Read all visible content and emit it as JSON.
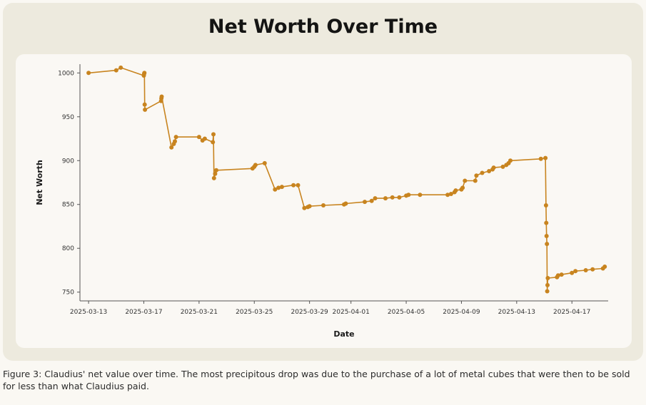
{
  "figure": {
    "caption": "Figure 3: Claudius' net value over time. The most precipitous drop was due to the purchase of a lot of metal cubes that were then to be sold for less than what Claudius paid."
  },
  "chart_data": {
    "type": "line",
    "title": "Net Worth Over Time",
    "xlabel": "Date",
    "ylabel": "Net Worth",
    "ylim": [
      740,
      1010
    ],
    "xlim": [
      "2025-03-12T09:00",
      "2025-04-19T15:00"
    ],
    "yticks": [
      750,
      800,
      850,
      900,
      950,
      1000
    ],
    "xticks": [
      "2025-03-13",
      "2025-03-17",
      "2025-03-21",
      "2025-03-25",
      "2025-03-29",
      "2025-04-01",
      "2025-04-05",
      "2025-04-09",
      "2025-04-13",
      "2025-04-17"
    ],
    "grid": false,
    "legend": "none",
    "color": "#c8841f",
    "series": [
      {
        "points": [
          [
            "2025-03-13T00:00",
            1000
          ],
          [
            "2025-03-15T00:00",
            1003
          ],
          [
            "2025-03-15T08:00",
            1006
          ],
          [
            "2025-03-17T00:00",
            997
          ],
          [
            "2025-03-17T00:30",
            999
          ],
          [
            "2025-03-17T01:00",
            1000
          ],
          [
            "2025-03-17T01:30",
            964
          ],
          [
            "2025-03-17T02:00",
            958
          ],
          [
            "2025-03-18T06:00",
            968
          ],
          [
            "2025-03-18T06:30",
            971
          ],
          [
            "2025-03-18T07:00",
            973
          ],
          [
            "2025-03-19T00:00",
            915
          ],
          [
            "2025-03-19T04:00",
            919
          ],
          [
            "2025-03-19T06:00",
            922
          ],
          [
            "2025-03-19T08:00",
            927
          ],
          [
            "2025-03-21T00:00",
            927
          ],
          [
            "2025-03-21T06:00",
            923
          ],
          [
            "2025-03-21T10:00",
            925
          ],
          [
            "2025-03-22T00:00",
            921
          ],
          [
            "2025-03-22T01:00",
            930
          ],
          [
            "2025-03-22T02:00",
            880
          ],
          [
            "2025-03-22T04:00",
            885
          ],
          [
            "2025-03-22T06:00",
            889
          ],
          [
            "2025-03-24T21:00",
            891
          ],
          [
            "2025-03-25T00:00",
            893
          ],
          [
            "2025-03-25T02:00",
            895
          ],
          [
            "2025-03-25T18:00",
            897
          ],
          [
            "2025-03-26T12:00",
            867
          ],
          [
            "2025-03-26T18:00",
            869
          ],
          [
            "2025-03-27T00:00",
            870
          ],
          [
            "2025-03-27T20:00",
            872
          ],
          [
            "2025-03-28T04:00",
            872
          ],
          [
            "2025-03-28T15:00",
            846
          ],
          [
            "2025-03-28T21:00",
            847
          ],
          [
            "2025-03-29T00:00",
            848
          ],
          [
            "2025-03-30T00:00",
            849
          ],
          [
            "2025-03-31T12:00",
            850
          ],
          [
            "2025-03-31T15:00",
            851
          ],
          [
            "2025-04-02T00:00",
            853
          ],
          [
            "2025-04-02T12:00",
            854
          ],
          [
            "2025-04-02T18:00",
            857
          ],
          [
            "2025-04-03T12:00",
            857
          ],
          [
            "2025-04-04T00:00",
            858
          ],
          [
            "2025-04-04T12:00",
            858
          ],
          [
            "2025-04-05T00:00",
            860
          ],
          [
            "2025-04-05T04:00",
            861
          ],
          [
            "2025-04-06T00:00",
            861
          ],
          [
            "2025-04-08T00:00",
            861
          ],
          [
            "2025-04-08T06:00",
            862
          ],
          [
            "2025-04-08T12:00",
            864
          ],
          [
            "2025-04-08T14:00",
            866
          ],
          [
            "2025-04-09T00:00",
            867
          ],
          [
            "2025-04-09T02:00",
            869
          ],
          [
            "2025-04-09T06:00",
            877
          ],
          [
            "2025-04-10T00:00",
            877
          ],
          [
            "2025-04-10T02:00",
            883
          ],
          [
            "2025-04-10T12:00",
            886
          ],
          [
            "2025-04-11T00:00",
            888
          ],
          [
            "2025-04-11T06:00",
            890
          ],
          [
            "2025-04-11T08:00",
            892
          ],
          [
            "2025-04-12T00:00",
            893
          ],
          [
            "2025-04-12T06:00",
            895
          ],
          [
            "2025-04-12T10:00",
            897
          ],
          [
            "2025-04-12T13:00",
            900
          ],
          [
            "2025-04-14T18:00",
            902
          ],
          [
            "2025-04-15T02:00",
            903
          ],
          [
            "2025-04-15T03:00",
            849
          ],
          [
            "2025-04-15T03:30",
            829
          ],
          [
            "2025-04-15T04:00",
            814
          ],
          [
            "2025-04-15T04:30",
            805
          ],
          [
            "2025-04-15T05:00",
            751
          ],
          [
            "2025-04-15T05:30",
            758
          ],
          [
            "2025-04-15T06:00",
            766
          ],
          [
            "2025-04-15T22:00",
            767
          ],
          [
            "2025-04-16T00:00",
            769
          ],
          [
            "2025-04-16T06:00",
            770
          ],
          [
            "2025-04-17T00:00",
            772
          ],
          [
            "2025-04-17T06:00",
            774
          ],
          [
            "2025-04-18T00:00",
            775
          ],
          [
            "2025-04-18T12:00",
            776
          ],
          [
            "2025-04-19T06:00",
            777
          ],
          [
            "2025-04-19T09:00",
            779
          ]
        ]
      }
    ]
  }
}
